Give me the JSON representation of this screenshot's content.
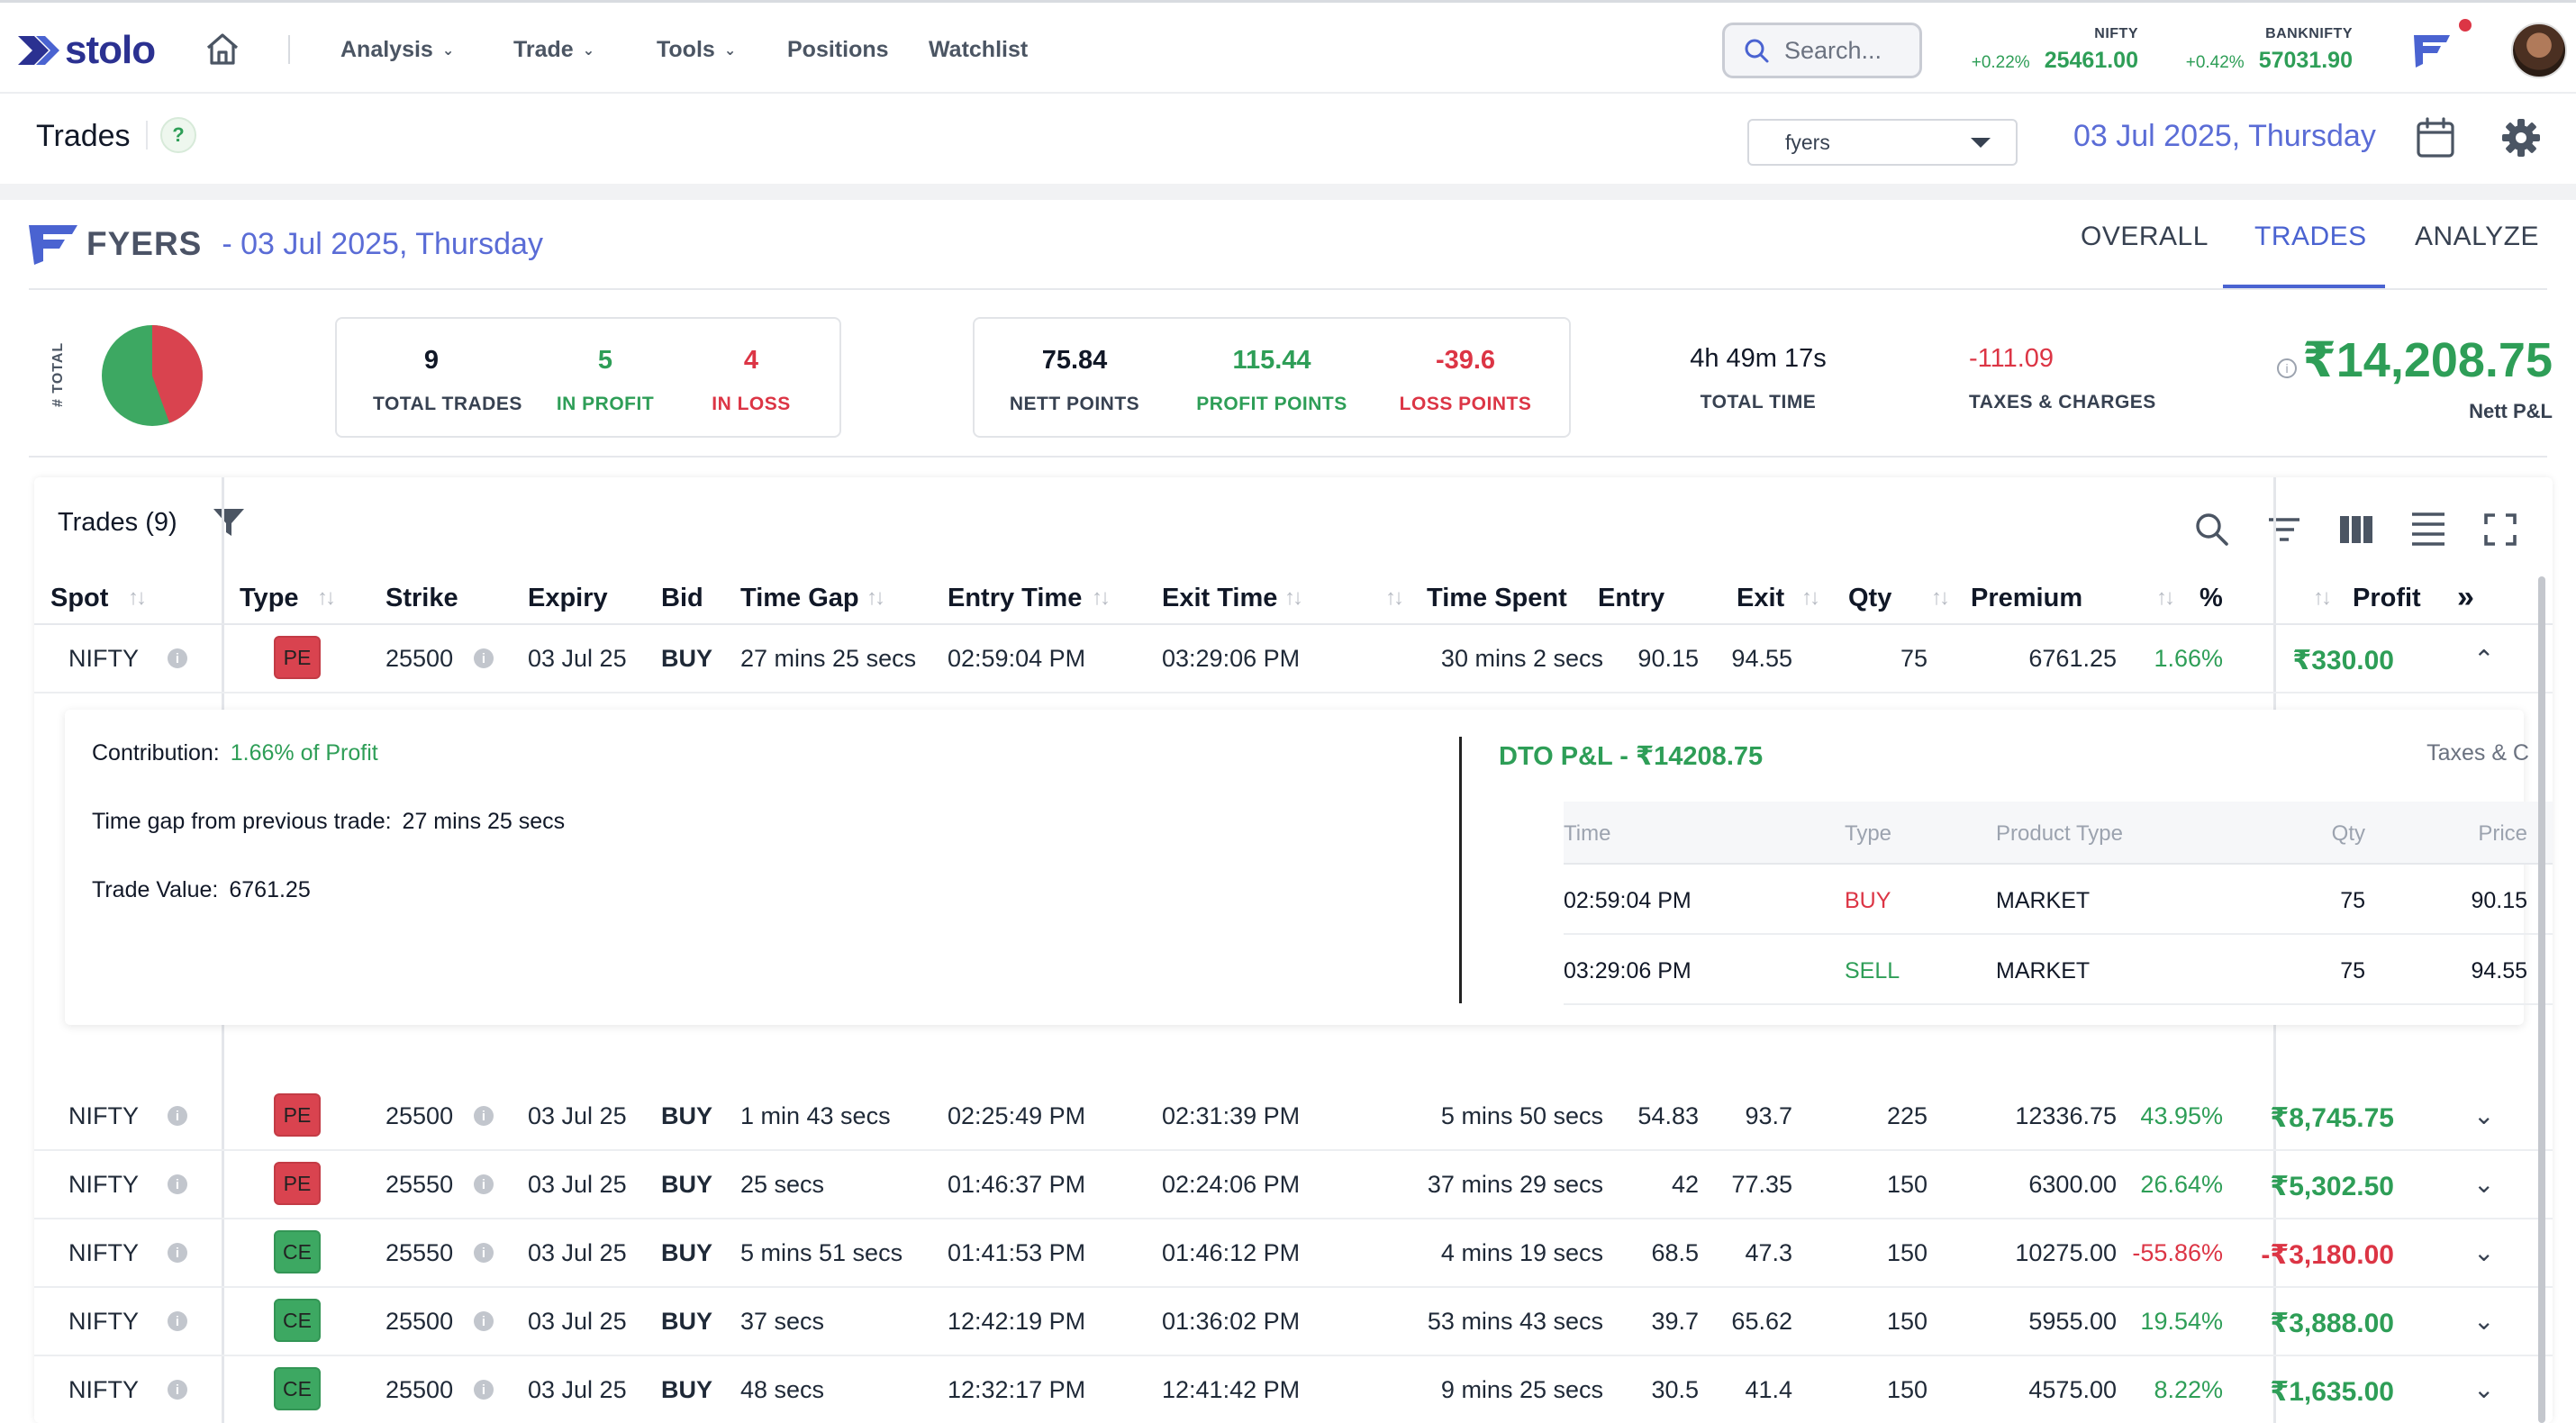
{
  "nav": {
    "brand": "stolo",
    "items": [
      {
        "label": "Analysis",
        "has_dropdown": true
      },
      {
        "label": "Trade",
        "has_dropdown": true
      },
      {
        "label": "Tools",
        "has_dropdown": true
      },
      {
        "label": "Positions",
        "has_dropdown": false
      },
      {
        "label": "Watchlist",
        "has_dropdown": false
      }
    ],
    "search_placeholder": "Search...",
    "tickers": [
      {
        "name": "NIFTY",
        "change": "+0.22%",
        "value": "25461.00"
      },
      {
        "name": "BANKNIFTY",
        "change": "+0.42%",
        "value": "57031.90"
      }
    ]
  },
  "subheader": {
    "title": "Trades",
    "help": "?",
    "broker": "fyers",
    "date": "03 Jul 2025, Thursday"
  },
  "summary": {
    "broker_name": "FYERS",
    "date": "- 03 Jul 2025, Thursday",
    "tabs": [
      "OVERALL",
      "TRADES",
      "ANALYZE"
    ],
    "active_tab": "TRADES",
    "pie_label": "# TOTAL",
    "pie": {
      "profit": 5,
      "loss": 4,
      "profit_color": "#3da862",
      "loss_color": "#d9434f"
    },
    "total_trades": "9",
    "total_trades_label": "TOTAL TRADES",
    "in_profit": "5",
    "in_profit_label": "IN PROFIT",
    "in_loss": "4",
    "in_loss_label": "IN LOSS",
    "nett_points": "75.84",
    "nett_points_label": "NETT POINTS",
    "profit_points": "115.44",
    "profit_points_label": "PROFIT POINTS",
    "loss_points": "-39.6",
    "loss_points_label": "LOSS POINTS",
    "total_time": "4h 49m 17s",
    "total_time_label": "TOTAL TIME",
    "taxes": "-111.09",
    "taxes_label": "TAXES & CHARGES",
    "nett_pnl": "₹14,208.75",
    "nett_pnl_label": "Nett P&L",
    "info": "i"
  },
  "table": {
    "title": "Trades (9)",
    "headers": {
      "spot": "Spot",
      "type": "Type",
      "strike": "Strike",
      "expiry": "Expiry",
      "bid": "Bid",
      "time_gap": "Time Gap",
      "entry_time": "Entry Time",
      "exit_time": "Exit Time",
      "time_spent": "Time Spent",
      "entry": "Entry",
      "exit": "Exit",
      "qty": "Qty",
      "premium": "Premium",
      "pct": "%",
      "profit": "Profit",
      "more": "»"
    },
    "rows": [
      {
        "spot": "NIFTY",
        "type": "PE",
        "strike": "25500",
        "expiry": "03 Jul 25",
        "bid": "BUY",
        "time_gap": "27 mins 25 secs",
        "entry_time": "02:59:04 PM",
        "exit_time": "03:29:06 PM",
        "time_spent": "30 mins 2 secs",
        "entry": "90.15",
        "exit": "94.55",
        "qty": "75",
        "premium": "6761.25",
        "pct": "1.66%",
        "profit": "₹330.00",
        "positive": true,
        "expanded": true
      },
      {
        "spot": "NIFTY",
        "type": "PE",
        "strike": "25500",
        "expiry": "03 Jul 25",
        "bid": "BUY",
        "time_gap": "1 min 43 secs",
        "entry_time": "02:25:49 PM",
        "exit_time": "02:31:39 PM",
        "time_spent": "5 mins 50 secs",
        "entry": "54.83",
        "exit": "93.7",
        "qty": "225",
        "premium": "12336.75",
        "pct": "43.95%",
        "profit": "₹8,745.75",
        "positive": true
      },
      {
        "spot": "NIFTY",
        "type": "PE",
        "strike": "25550",
        "expiry": "03 Jul 25",
        "bid": "BUY",
        "time_gap": "25 secs",
        "entry_time": "01:46:37 PM",
        "exit_time": "02:24:06 PM",
        "time_spent": "37 mins 29 secs",
        "entry": "42",
        "exit": "77.35",
        "qty": "150",
        "premium": "6300.00",
        "pct": "26.64%",
        "profit": "₹5,302.50",
        "positive": true
      },
      {
        "spot": "NIFTY",
        "type": "CE",
        "strike": "25550",
        "expiry": "03 Jul 25",
        "bid": "BUY",
        "time_gap": "5 mins 51 secs",
        "entry_time": "01:41:53 PM",
        "exit_time": "01:46:12 PM",
        "time_spent": "4 mins 19 secs",
        "entry": "68.5",
        "exit": "47.3",
        "qty": "150",
        "premium": "10275.00",
        "pct": "-55.86%",
        "profit": "-₹3,180.00",
        "positive": false
      },
      {
        "spot": "NIFTY",
        "type": "CE",
        "strike": "25500",
        "expiry": "03 Jul 25",
        "bid": "BUY",
        "time_gap": "37 secs",
        "entry_time": "12:42:19 PM",
        "exit_time": "01:36:02 PM",
        "time_spent": "53 mins 43 secs",
        "entry": "39.7",
        "exit": "65.62",
        "qty": "150",
        "premium": "5955.00",
        "pct": "19.54%",
        "profit": "₹3,888.00",
        "positive": true
      },
      {
        "spot": "NIFTY",
        "type": "CE",
        "strike": "25500",
        "expiry": "03 Jul 25",
        "bid": "BUY",
        "time_gap": "48 secs",
        "entry_time": "12:32:17 PM",
        "exit_time": "12:41:42 PM",
        "time_spent": "9 mins 25 secs",
        "entry": "30.5",
        "exit": "41.4",
        "qty": "150",
        "premium": "4575.00",
        "pct": "8.22%",
        "profit": "₹1,635.00",
        "positive": true
      }
    ]
  },
  "details": {
    "contribution_label": "Contribution:",
    "contribution_value": "1.66% of Profit",
    "time_gap_label": "Time gap from previous trade:",
    "time_gap_value": "27 mins 25 secs",
    "trade_value_label": "Trade Value:",
    "trade_value": "6761.25",
    "dto_title": "DTO P&L - ₹14208.75",
    "taxes_cut": "Taxes & C",
    "orders_headers": {
      "time": "Time",
      "type": "Type",
      "product": "Product Type",
      "qty": "Qty",
      "price": "Price"
    },
    "orders": [
      {
        "time": "02:59:04 PM",
        "type": "BUY",
        "product": "MARKET",
        "qty": "75",
        "price": "90.15"
      },
      {
        "time": "03:29:06 PM",
        "type": "SELL",
        "product": "MARKET",
        "qty": "75",
        "price": "94.55"
      }
    ]
  },
  "colors": {
    "accent": "#4a63d1",
    "profit": "#2e9e57",
    "loss": "#dc3545",
    "brand": "#2b3191"
  }
}
